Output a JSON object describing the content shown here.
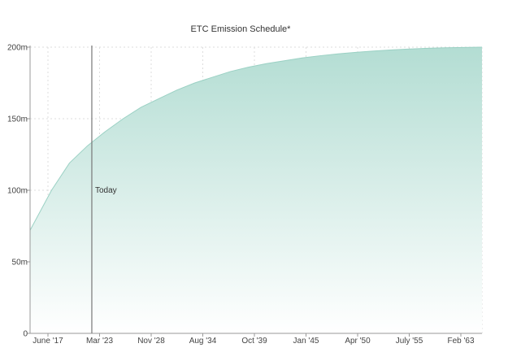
{
  "chart_data": {
    "type": "area",
    "title": "ETC Emission Schedule*",
    "xlabel": "",
    "ylabel": "",
    "x_ticks": [
      "June '17",
      "Mar '23",
      "Nov '28",
      "Aug '34",
      "Oct '39",
      "Jan '45",
      "Apr '50",
      "July '55",
      "Feb '63"
    ],
    "y_ticks": [
      "0",
      "50m",
      "100m",
      "150m",
      "200m"
    ],
    "ylim": [
      0,
      200
    ],
    "xlim": [
      2015.6,
      2066.1
    ],
    "grid": true,
    "legend": "none",
    "annotation": {
      "label": "Today",
      "x": 2022.5
    },
    "series": [
      {
        "x": [
          2015.6,
          2018.0,
          2020.0,
          2022.0,
          2024.0,
          2026.0,
          2028.0,
          2030.0,
          2032.0,
          2034.0,
          2036.0,
          2038.0,
          2040.0,
          2042.0,
          2044.0,
          2046.0,
          2048.0,
          2050.0,
          2052.0,
          2054.0,
          2056.0,
          2058.0,
          2060.0,
          2062.0,
          2064.0,
          2066.1
        ],
        "y": [
          72,
          100,
          119,
          131,
          141,
          150,
          158,
          164,
          170,
          175,
          179,
          183,
          186,
          188.5,
          190.5,
          192.5,
          194,
          195.3,
          196.4,
          197.3,
          198.1,
          198.7,
          199.2,
          199.6,
          199.8,
          200
        ]
      }
    ],
    "colors": {
      "fill_top": "#b3ddd3",
      "fill_bottom": "#ffffff",
      "line": "#9bd1c4",
      "marker": "#777777",
      "axis": "#999999",
      "grid": "#dddddd"
    }
  }
}
